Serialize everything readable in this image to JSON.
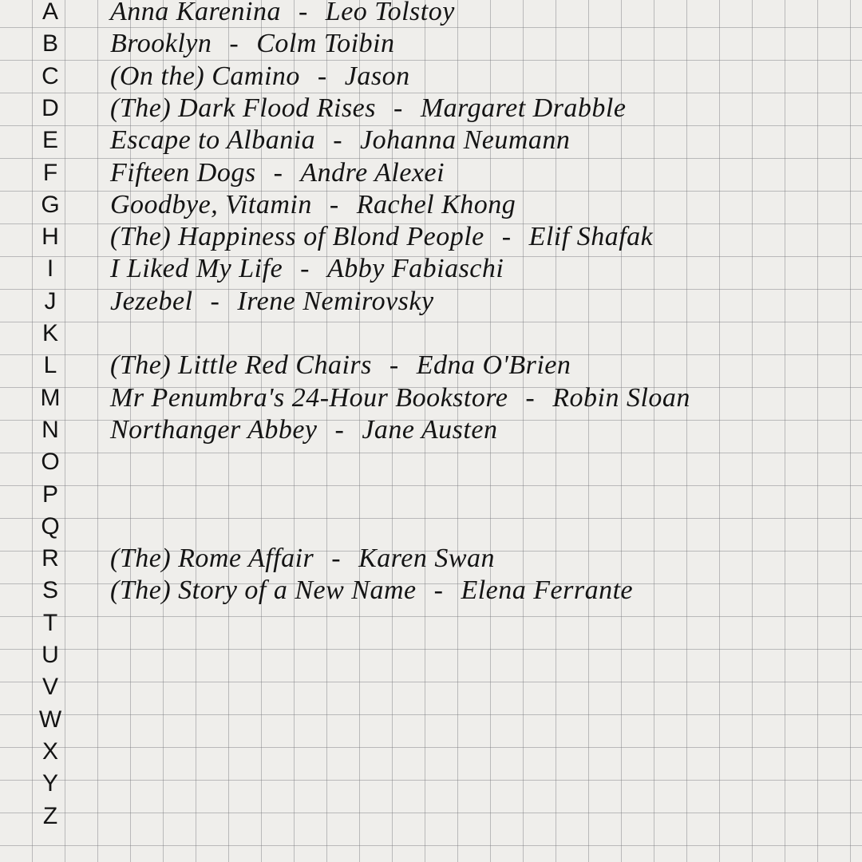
{
  "list": [
    {
      "letter": "A",
      "title": "Anna Karenina",
      "author": "Leo Tolstoy"
    },
    {
      "letter": "B",
      "title": "Brooklyn",
      "author": "Colm Toibin"
    },
    {
      "letter": "C",
      "title": "(On the) Camino",
      "author": "Jason"
    },
    {
      "letter": "D",
      "title": "(The) Dark Flood Rises",
      "author": "Margaret Drabble"
    },
    {
      "letter": "E",
      "title": "Escape to Albania",
      "author": "Johanna Neumann"
    },
    {
      "letter": "F",
      "title": "Fifteen Dogs",
      "author": "Andre Alexei"
    },
    {
      "letter": "G",
      "title": "Goodbye, Vitamin",
      "author": "Rachel Khong"
    },
    {
      "letter": "H",
      "title": "(The) Happiness of Blond People",
      "author": "Elif Shafak"
    },
    {
      "letter": "I",
      "title": "I Liked My Life",
      "author": "Abby Fabiaschi"
    },
    {
      "letter": "J",
      "title": "Jezebel",
      "author": "Irene Nemirovsky"
    },
    {
      "letter": "K",
      "title": "",
      "author": ""
    },
    {
      "letter": "L",
      "title": "(The) Little Red Chairs",
      "author": "Edna O'Brien"
    },
    {
      "letter": "M",
      "title": "Mr Penumbra's 24-Hour Bookstore",
      "author": "Robin Sloan"
    },
    {
      "letter": "N",
      "title": "Northanger Abbey",
      "author": "Jane Austen"
    },
    {
      "letter": "O",
      "title": "",
      "author": ""
    },
    {
      "letter": "P",
      "title": "",
      "author": ""
    },
    {
      "letter": "Q",
      "title": "",
      "author": ""
    },
    {
      "letter": "R",
      "title": "(The) Rome Affair",
      "author": "Karen Swan"
    },
    {
      "letter": "S",
      "title": "(The) Story of a New Name",
      "author": "Elena Ferrante"
    },
    {
      "letter": "T",
      "title": "",
      "author": ""
    },
    {
      "letter": "U",
      "title": "",
      "author": ""
    },
    {
      "letter": "V",
      "title": "",
      "author": ""
    },
    {
      "letter": "W",
      "title": "",
      "author": ""
    },
    {
      "letter": "X",
      "title": "",
      "author": ""
    },
    {
      "letter": "Y",
      "title": "",
      "author": ""
    },
    {
      "letter": "Z",
      "title": "",
      "author": ""
    }
  ],
  "separator": "-",
  "colors": {
    "paper": "#efeeeb",
    "grid": "#8a8a8f",
    "ink": "#141414"
  }
}
